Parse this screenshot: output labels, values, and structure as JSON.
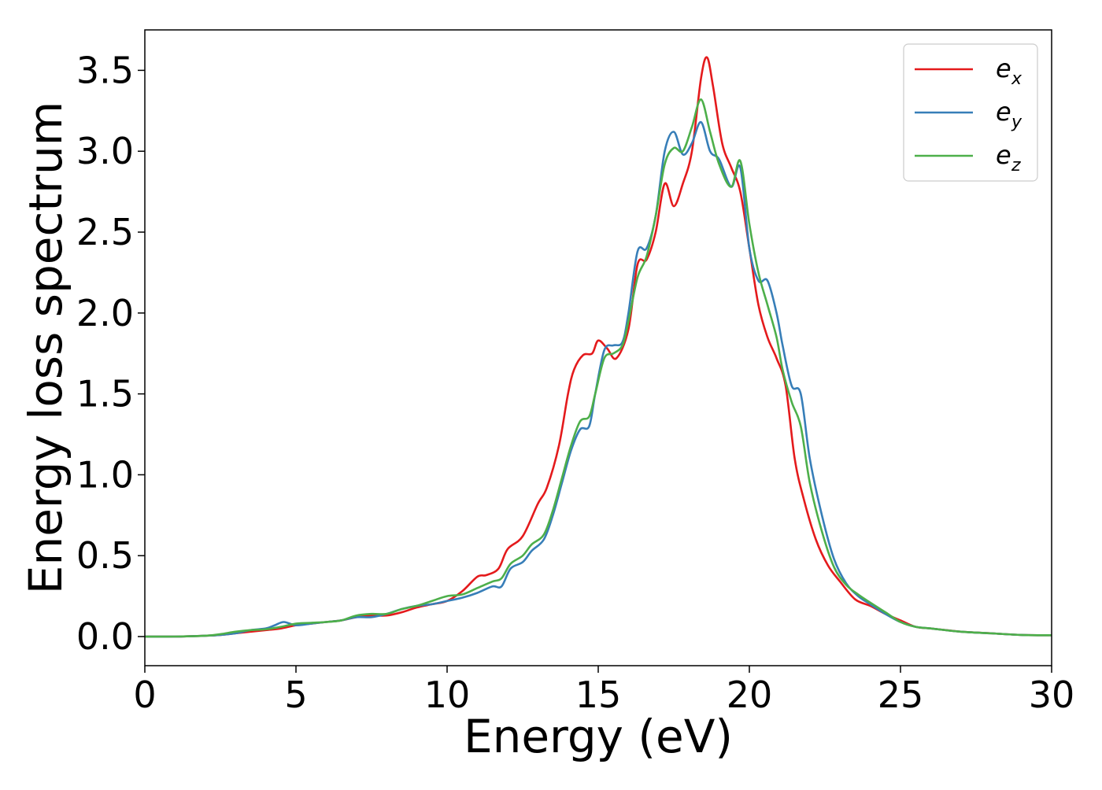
{
  "chart_data": {
    "type": "line",
    "xlabel": "Energy (eV)",
    "ylabel": "Energy loss spectrum",
    "xlim": [
      0,
      30
    ],
    "ylim": [
      -0.18,
      3.75
    ],
    "xticks": [
      0,
      5,
      10,
      15,
      20,
      25,
      30
    ],
    "yticks": [
      0.0,
      0.5,
      1.0,
      1.5,
      2.0,
      2.5,
      3.0,
      3.5
    ],
    "xtick_labels": [
      "0",
      "5",
      "10",
      "15",
      "20",
      "25",
      "30"
    ],
    "ytick_labels": [
      "0.0",
      "0.5",
      "1.0",
      "1.5",
      "2.0",
      "2.5",
      "3.0",
      "3.5"
    ],
    "grid": false,
    "legend_position": "top-right",
    "series": [
      {
        "name": "e",
        "subscript": "x",
        "color": "#e41a1c",
        "x": [
          0,
          1,
          2,
          2.5,
          3,
          3.5,
          4,
          4.5,
          5,
          5.5,
          6,
          6.5,
          7,
          7.5,
          8,
          8.5,
          9,
          9.5,
          10,
          10.5,
          11,
          11.3,
          11.7,
          12,
          12.5,
          13,
          13.3,
          13.7,
          14,
          14.2,
          14.5,
          14.8,
          15,
          15.3,
          15.6,
          16,
          16.3,
          16.6,
          16.9,
          17.2,
          17.5,
          17.8,
          18.1,
          18.4,
          18.6,
          18.8,
          19.1,
          19.4,
          19.7,
          20,
          20.3,
          20.6,
          20.9,
          21.2,
          21.5,
          21.8,
          22.2,
          22.6,
          23,
          23.5,
          24,
          24.5,
          25,
          25.5,
          26,
          26.5,
          27,
          28,
          29,
          30
        ],
        "y": [
          0.0,
          0.0,
          0.005,
          0.01,
          0.02,
          0.03,
          0.04,
          0.05,
          0.07,
          0.08,
          0.09,
          0.1,
          0.12,
          0.13,
          0.13,
          0.15,
          0.18,
          0.2,
          0.22,
          0.28,
          0.37,
          0.38,
          0.42,
          0.54,
          0.62,
          0.82,
          0.92,
          1.18,
          1.5,
          1.65,
          1.74,
          1.75,
          1.83,
          1.78,
          1.72,
          1.9,
          2.3,
          2.33,
          2.5,
          2.8,
          2.66,
          2.8,
          3.0,
          3.45,
          3.58,
          3.4,
          3.05,
          2.9,
          2.75,
          2.4,
          2.05,
          1.85,
          1.72,
          1.55,
          1.1,
          0.85,
          0.6,
          0.44,
          0.34,
          0.23,
          0.19,
          0.14,
          0.1,
          0.06,
          0.05,
          0.04,
          0.03,
          0.02,
          0.01,
          0.008
        ]
      },
      {
        "name": "e",
        "subscript": "y",
        "color": "#377eb8",
        "x": [
          0,
          1,
          2,
          2.5,
          3,
          3.5,
          4,
          4.3,
          4.6,
          5,
          5.5,
          6,
          6.5,
          7,
          7.5,
          8,
          8.5,
          9,
          9.5,
          10,
          10.5,
          11,
          11.5,
          11.8,
          12.1,
          12.5,
          12.8,
          13.2,
          13.5,
          13.8,
          14.1,
          14.4,
          14.7,
          14.9,
          15.2,
          15.5,
          15.8,
          16,
          16.3,
          16.6,
          16.9,
          17.2,
          17.5,
          17.8,
          18.1,
          18.4,
          18.7,
          19,
          19.4,
          19.7,
          20,
          20.3,
          20.6,
          20.9,
          21.1,
          21.4,
          21.7,
          22,
          22.4,
          22.8,
          23.2,
          23.6,
          24,
          24.5,
          25,
          25.5,
          26,
          27,
          28,
          29,
          30
        ],
        "y": [
          0.0,
          0.0,
          0.005,
          0.01,
          0.02,
          0.04,
          0.05,
          0.07,
          0.09,
          0.07,
          0.08,
          0.09,
          0.1,
          0.12,
          0.12,
          0.14,
          0.17,
          0.19,
          0.2,
          0.22,
          0.24,
          0.27,
          0.31,
          0.31,
          0.42,
          0.46,
          0.53,
          0.6,
          0.75,
          0.95,
          1.15,
          1.28,
          1.3,
          1.5,
          1.77,
          1.8,
          1.82,
          2.0,
          2.38,
          2.4,
          2.6,
          3.0,
          3.12,
          2.98,
          3.05,
          3.18,
          3.0,
          2.95,
          2.78,
          2.9,
          2.4,
          2.2,
          2.2,
          2.0,
          1.8,
          1.55,
          1.5,
          1.1,
          0.75,
          0.48,
          0.33,
          0.25,
          0.2,
          0.14,
          0.09,
          0.06,
          0.05,
          0.03,
          0.02,
          0.01,
          0.008
        ]
      },
      {
        "name": "e",
        "subscript": "z",
        "color": "#4daf4a",
        "x": [
          0,
          1,
          2,
          2.5,
          3,
          3.5,
          4,
          4.5,
          5,
          5.5,
          6,
          6.5,
          7,
          7.5,
          8,
          8.5,
          9,
          9.5,
          10,
          10.5,
          11,
          11.5,
          11.8,
          12.1,
          12.5,
          12.8,
          13.2,
          13.5,
          13.8,
          14.1,
          14.4,
          14.7,
          14.9,
          15.2,
          15.5,
          15.8,
          16,
          16.3,
          16.6,
          16.9,
          17.2,
          17.5,
          17.8,
          18.1,
          18.4,
          18.7,
          19,
          19.4,
          19.7,
          20,
          20.3,
          20.6,
          20.9,
          21.1,
          21.4,
          21.7,
          22,
          22.4,
          22.8,
          23.2,
          23.6,
          24,
          24.5,
          25,
          25.5,
          26,
          27,
          28,
          29,
          30
        ],
        "y": [
          0.0,
          0.0,
          0.005,
          0.015,
          0.03,
          0.04,
          0.045,
          0.06,
          0.08,
          0.085,
          0.09,
          0.1,
          0.13,
          0.14,
          0.14,
          0.17,
          0.19,
          0.22,
          0.25,
          0.26,
          0.3,
          0.34,
          0.36,
          0.45,
          0.5,
          0.57,
          0.63,
          0.78,
          0.98,
          1.18,
          1.33,
          1.36,
          1.5,
          1.72,
          1.75,
          1.8,
          1.95,
          2.22,
          2.35,
          2.6,
          2.92,
          3.02,
          3.0,
          3.15,
          3.32,
          3.12,
          2.92,
          2.78,
          2.94,
          2.55,
          2.25,
          2.05,
          1.85,
          1.65,
          1.45,
          1.3,
          0.95,
          0.65,
          0.43,
          0.32,
          0.26,
          0.21,
          0.15,
          0.09,
          0.06,
          0.05,
          0.03,
          0.02,
          0.01,
          0.008
        ]
      }
    ]
  }
}
